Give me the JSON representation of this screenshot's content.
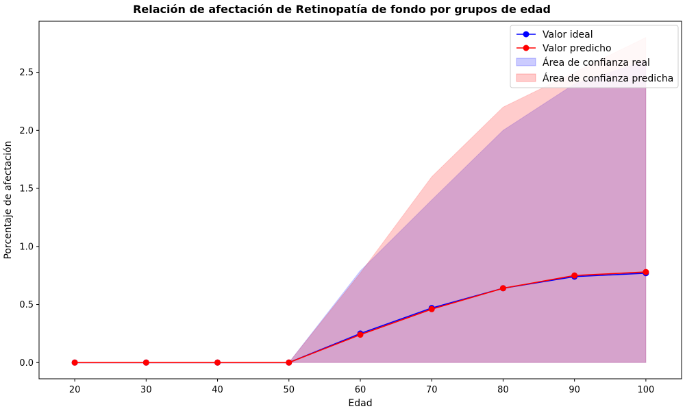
{
  "chart_data": {
    "type": "line",
    "title": "Relación de afectación de Retinopatía de fondo por grupos de edad",
    "xlabel": "Edad",
    "ylabel": "Porcentaje de afectación",
    "xlim": [
      15,
      105
    ],
    "ylim": [
      -0.14,
      2.94
    ],
    "x_ticks": [
      20,
      30,
      40,
      50,
      60,
      70,
      80,
      90,
      100
    ],
    "y_ticks": [
      0.0,
      0.5,
      1.0,
      1.5,
      2.0,
      2.5
    ],
    "x_tick_labels": [
      "20",
      "30",
      "40",
      "50",
      "60",
      "70",
      "80",
      "90",
      "100"
    ],
    "y_tick_labels": [
      "0.0",
      "0.5",
      "1.0",
      "1.5",
      "2.0",
      "2.5"
    ],
    "grid": false,
    "legend_position": "top-right",
    "x": [
      20,
      30,
      40,
      50,
      60,
      70,
      80,
      90,
      100
    ],
    "series": [
      {
        "name": "Valor ideal",
        "values": [
          0,
          0,
          0,
          0,
          0.25,
          0.47,
          0.64,
          0.74,
          0.77
        ],
        "color": "#0000ff"
      },
      {
        "name": "Valor predicho",
        "values": [
          0,
          0,
          0,
          0,
          0.24,
          0.46,
          0.64,
          0.75,
          0.78
        ],
        "color": "#ff0000"
      }
    ],
    "bands": [
      {
        "name": "Área de confianza real",
        "color": "#0000ff",
        "opacity": 0.2,
        "lower": [
          0,
          0,
          0,
          0,
          0,
          0,
          0,
          0,
          0
        ],
        "upper": [
          0,
          0,
          0,
          0,
          0.79,
          1.4,
          2.0,
          2.4,
          2.6
        ]
      },
      {
        "name": "Área de confianza predicha",
        "color": "#ff0000",
        "opacity": 0.2,
        "lower": [
          0,
          0,
          0,
          0,
          0,
          0,
          0,
          0,
          0
        ],
        "upper": [
          0,
          0,
          0,
          0,
          0.77,
          1.6,
          2.2,
          2.5,
          2.8
        ]
      }
    ]
  }
}
